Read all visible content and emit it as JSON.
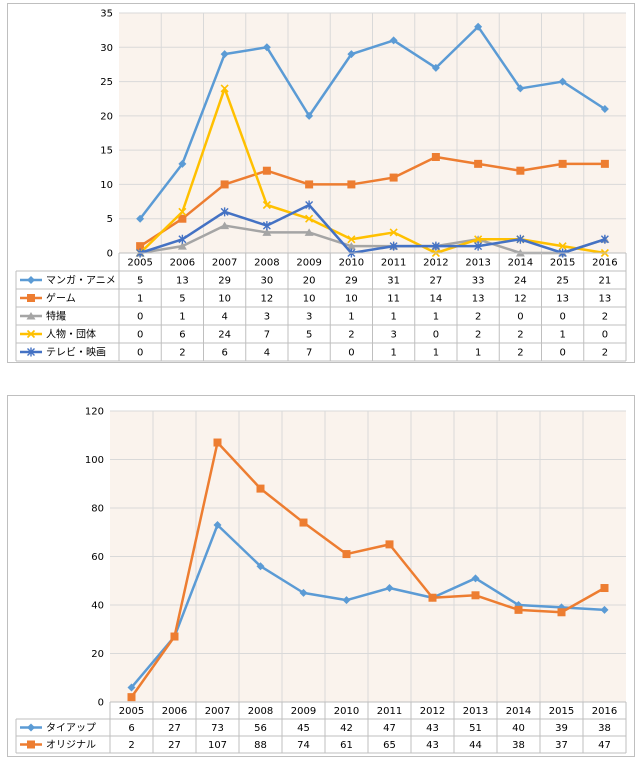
{
  "chart_data": [
    {
      "type": "line",
      "categories": [
        "2005",
        "2006",
        "2007",
        "2008",
        "2009",
        "2010",
        "2011",
        "2012",
        "2013",
        "2014",
        "2015",
        "2016"
      ],
      "ylim": [
        0,
        35
      ],
      "yticks": [
        0,
        5,
        10,
        15,
        20,
        25,
        30,
        35
      ],
      "grid": true,
      "legend": "data-table",
      "series": [
        {
          "name": "マンガ・アニメ",
          "color": "#5b9bd5",
          "marker": "diamond",
          "values": [
            5,
            13,
            29,
            30,
            20,
            29,
            31,
            27,
            33,
            24,
            25,
            21
          ]
        },
        {
          "name": "ゲーム",
          "color": "#ed7d31",
          "marker": "square",
          "values": [
            1,
            5,
            10,
            12,
            10,
            10,
            11,
            14,
            13,
            12,
            13,
            13
          ]
        },
        {
          "name": "特撮",
          "color": "#a5a5a5",
          "marker": "triangle",
          "values": [
            0,
            1,
            4,
            3,
            3,
            1,
            1,
            1,
            2,
            0,
            0,
            2
          ]
        },
        {
          "name": "人物・団体",
          "color": "#ffc000",
          "marker": "x",
          "values": [
            0,
            6,
            24,
            7,
            5,
            2,
            3,
            0,
            2,
            2,
            1,
            0
          ]
        },
        {
          "name": "テレビ・映画",
          "color": "#4472c4",
          "marker": "star",
          "values": [
            0,
            2,
            6,
            4,
            7,
            0,
            1,
            1,
            1,
            2,
            0,
            2
          ]
        }
      ]
    },
    {
      "type": "line",
      "categories": [
        "2005",
        "2006",
        "2007",
        "2008",
        "2009",
        "2010",
        "2011",
        "2012",
        "2013",
        "2014",
        "2015",
        "2016"
      ],
      "ylim": [
        0,
        120
      ],
      "yticks": [
        0,
        20,
        40,
        60,
        80,
        100,
        120
      ],
      "grid": true,
      "legend": "data-table",
      "series": [
        {
          "name": "タイアップ",
          "color": "#5b9bd5",
          "marker": "diamond",
          "values": [
            6,
            27,
            73,
            56,
            45,
            42,
            47,
            43,
            51,
            40,
            39,
            38
          ]
        },
        {
          "name": "オリジナル",
          "color": "#ed7d31",
          "marker": "square",
          "values": [
            2,
            27,
            107,
            88,
            74,
            61,
            65,
            43,
            44,
            38,
            37,
            47
          ]
        }
      ]
    }
  ]
}
